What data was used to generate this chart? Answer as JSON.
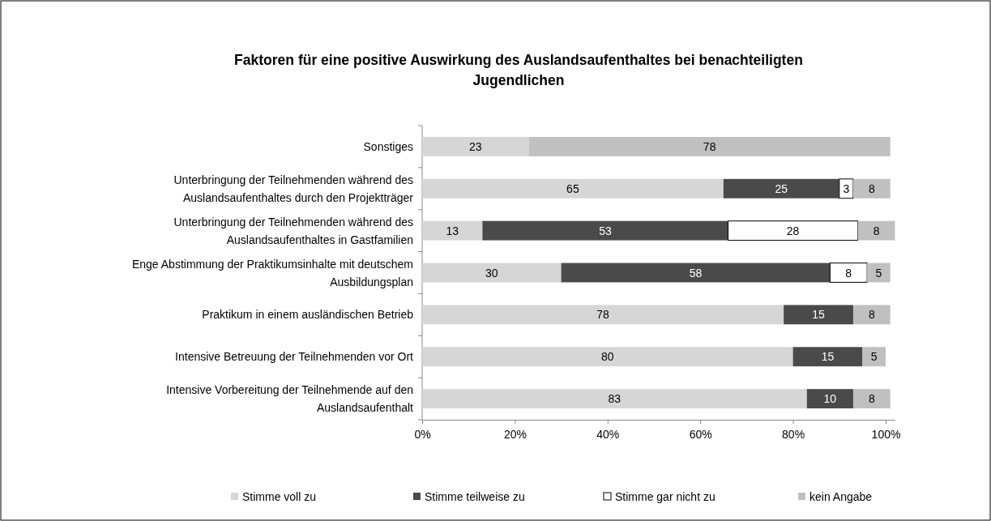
{
  "chart_data": {
    "type": "bar",
    "orientation": "horizontal",
    "stacked": true,
    "title": "Faktoren für eine positive Auswirkung des Auslandsaufenthaltes bei benachteiligten Jugendlichen",
    "categories": [
      "Sonstiges",
      "Unterbringung der Teilnehmenden während des Auslandsaufenthaltes durch den Projektträger",
      "Unterbringung der Teilnehmenden während des Auslandsaufenthaltes in Gastfamilien",
      "Enge Abstimmung der Praktikumsinhalte mit deutschem Ausbildungsplan",
      "Praktikum in einem ausländischen Betrieb",
      "Intensive Betreuung der Teilnehmenden vor Ort",
      "Intensive Vorbereitung der Teilnehmende auf den Auslandsaufenthalt"
    ],
    "series": [
      {
        "name": "Stimme voll zu",
        "color": "#d6d6d6",
        "values": [
          23,
          65,
          13,
          30,
          78,
          80,
          83
        ]
      },
      {
        "name": "Stimme teilweise zu",
        "color": "#4a4a4a",
        "values": [
          null,
          25,
          53,
          58,
          15,
          15,
          10
        ]
      },
      {
        "name": "Stimme gar nicht zu",
        "color": "#ffffff",
        "values": [
          null,
          3,
          28,
          8,
          null,
          null,
          null
        ]
      },
      {
        "name": "kein Angabe",
        "color": "#c0c0c0",
        "values": [
          78,
          8,
          8,
          5,
          8,
          5,
          8
        ]
      }
    ],
    "xlim": [
      0,
      102
    ],
    "xticks": [
      {
        "value": 0,
        "label": "0%"
      },
      {
        "value": 20,
        "label": "20%"
      },
      {
        "value": 40,
        "label": "40%"
      },
      {
        "value": 60,
        "label": "60%"
      },
      {
        "value": 80,
        "label": "80%"
      },
      {
        "value": 100,
        "label": "100%"
      }
    ],
    "data_labels": true,
    "legend": "bottom"
  }
}
